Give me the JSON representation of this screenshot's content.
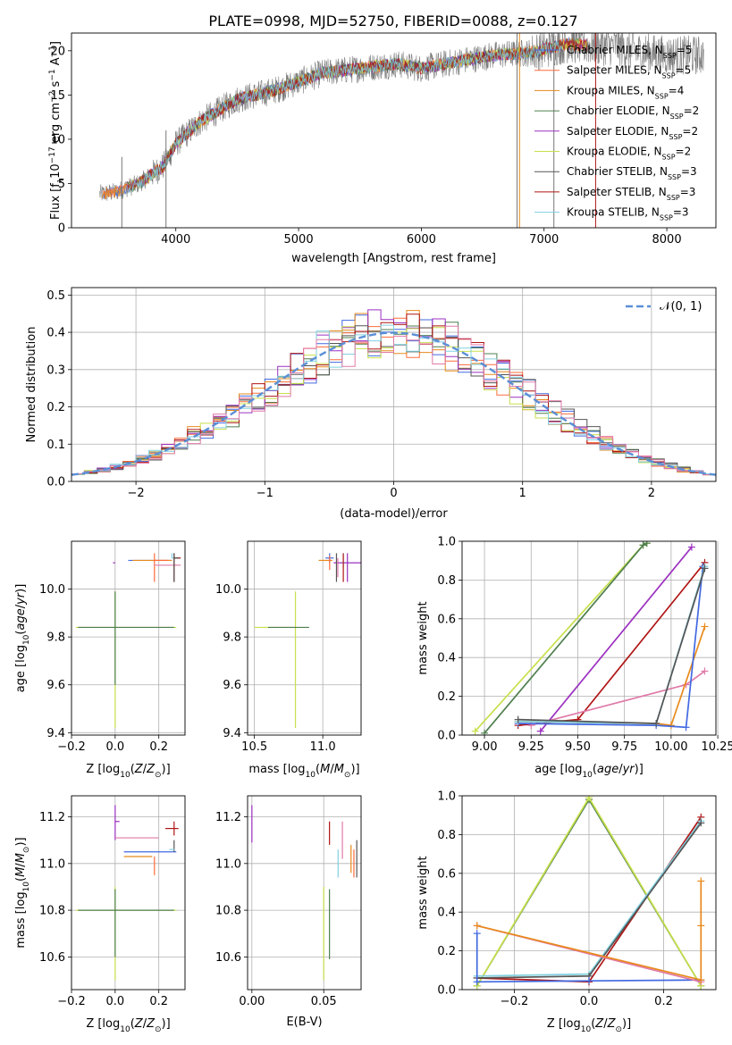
{
  "figure": {
    "title": "PLATE=0998, MJD=52750, FIBERID=0088, z=0.127"
  },
  "colors": {
    "chabrier_miles": "#4169e1",
    "salpeter_miles": "#ff6b3a",
    "kroupa_miles": "#e88a1c",
    "chabrier_elodie": "#4f7f4f",
    "salpeter_elodie": "#9b30c0",
    "kroupa_elodie": "#c8e04c",
    "chabrier_stelib": "#555555",
    "salpeter_stelib": "#b01515",
    "kroupa_stelib": "#80d0e0",
    "pink": "#e07aa8",
    "gauss": "#5b8fd6"
  },
  "chart_data": [
    {
      "id": "spectrum",
      "type": "line",
      "xlabel": "wavelength [Angstrom, rest frame]",
      "ylabel": "Flux [f",
      "xlim": [
        3150,
        8400
      ],
      "ylim": [
        0,
        22
      ],
      "xticks": [
        4000,
        5000,
        6000,
        7000,
        8000
      ],
      "yticks": [
        0,
        5,
        10,
        15,
        20
      ],
      "grid": false,
      "legend_position": "top-right",
      "legend": [
        "Chabrier MILES, N",
        "Salpeter MILES, N",
        "Kroupa MILES, N",
        "Chabrier ELODIE, N",
        "Salpeter ELODIE, N",
        "Kroupa ELODIE, N",
        "Chabrier STELIB, N",
        "Salpeter STELIB, N",
        "Kroupa STELIB, N"
      ],
      "legend_nssp": [
        "5",
        "5",
        "4",
        "2",
        "2",
        "2",
        "3",
        "3",
        "3"
      ],
      "continuum": {
        "x": [
          3380,
          3500,
          3700,
          3900,
          4000,
          4200,
          4500,
          4800,
          5000,
          5200,
          5500,
          5800,
          6000,
          6300,
          6600,
          6900,
          7100,
          7200,
          7400,
          7600,
          7700,
          8000,
          8300
        ],
        "y": [
          3.8,
          4.0,
          5.0,
          7.0,
          9.5,
          12.0,
          14.5,
          15.5,
          16.5,
          17.5,
          18.0,
          18.5,
          18.0,
          18.8,
          19.5,
          19.8,
          20.5,
          20.8,
          20.5,
          20.5,
          20.0,
          19.5,
          19.5
        ]
      },
      "models_extent": [
        3400,
        7350
      ],
      "spikes": [
        {
          "x": 3560,
          "ymin": 0,
          "ymax": 8
        },
        {
          "x": 3920,
          "ymin": 0,
          "ymax": 11
        },
        {
          "x": 6780,
          "ymin": 0,
          "ymax": 22
        },
        {
          "x": 6800,
          "ymin": 0,
          "ymax": 22
        },
        {
          "x": 7080,
          "ymin": 0,
          "ymax": 22
        },
        {
          "x": 7420,
          "ymin": 0,
          "ymax": 22
        }
      ]
    },
    {
      "id": "residuals",
      "type": "histogram",
      "xlabel": "(data-model)/error",
      "ylabel": "Normed distribution",
      "xlim": [
        -2.5,
        2.5
      ],
      "ylim": [
        0,
        0.52
      ],
      "xticks": [
        -2,
        -1,
        0,
        1,
        2
      ],
      "yticks": [
        0.0,
        0.1,
        0.2,
        0.3,
        0.4,
        0.5
      ],
      "grid": true,
      "legend_position": "top-right",
      "legend": [
        "𝒩(0, 1)"
      ],
      "bin_width": 0.1,
      "gaussian": {
        "mean": 0,
        "sigma": 1
      }
    },
    {
      "id": "age_vs_Z",
      "type": "scatter",
      "xlabel": "Z [log",
      "ylabel": "age  [log",
      "xlim": [
        -0.2,
        0.32
      ],
      "ylim": [
        9.39,
        10.2
      ],
      "xticks": [
        -0.2,
        0.0,
        0.2
      ],
      "yticks": [
        9.4,
        9.6,
        9.8,
        10.0
      ],
      "grid": true,
      "points": [
        {
          "series": "kroupa_elodie",
          "x": 0.0,
          "y": 9.84,
          "xerr": [
            0.18,
            0.28
          ],
          "yerr": [
            0.42,
            0.15
          ]
        },
        {
          "series": "chabrier_elodie",
          "x": 0.0,
          "y": 9.84,
          "xerr": [
            0.17,
            0.27
          ],
          "yerr": [
            0.24,
            0.15
          ]
        },
        {
          "series": "salpeter_elodie",
          "x": 0.0,
          "y": 10.11,
          "xerr": [
            0.01,
            0.0
          ],
          "yerr": [
            0.0,
            0.0
          ]
        },
        {
          "series": "chabrier_miles",
          "x": 0.08,
          "y": 10.12,
          "xerr": [
            0.02,
            0.18
          ],
          "yerr": [
            0.0,
            0.0
          ]
        },
        {
          "series": "kroupa_miles",
          "x": 0.08,
          "y": 10.12,
          "xerr": [
            0.0,
            0.18
          ],
          "yerr": [
            0.0,
            0.0
          ]
        },
        {
          "series": "salpeter_miles",
          "x": 0.18,
          "y": 10.12,
          "xerr": [
            0.0,
            0.06
          ],
          "yerr": [
            0.09,
            0.03
          ]
        },
        {
          "series": "pink",
          "x": 0.18,
          "y": 10.1,
          "xerr": [
            0.0,
            0.12
          ],
          "yerr": [
            0.0,
            0.0
          ]
        },
        {
          "series": "kroupa_stelib",
          "x": 0.26,
          "y": 10.13,
          "xerr": [
            0.0,
            0.04
          ],
          "yerr": [
            0.0,
            0.02
          ]
        },
        {
          "series": "salpeter_stelib",
          "x": 0.27,
          "y": 10.13,
          "xerr": [
            0.0,
            0.03
          ],
          "yerr": [
            0.1,
            0.02
          ]
        },
        {
          "series": "chabrier_stelib",
          "x": 0.27,
          "y": 10.13,
          "xerr": [
            0.0,
            0.02
          ],
          "yerr": [
            0.1,
            0.02
          ]
        }
      ]
    },
    {
      "id": "age_vs_mass",
      "type": "scatter",
      "xlabel": "mass [log",
      "ylabel": "",
      "xlim": [
        10.45,
        11.28
      ],
      "ylim": [
        9.39,
        10.2
      ],
      "xticks": [
        10.5,
        11.0
      ],
      "yticks": [
        9.4,
        9.6,
        9.8,
        10.0
      ],
      "grid": true,
      "points": [
        {
          "series": "kroupa_elodie",
          "x": 10.8,
          "y": 9.84,
          "xerr": [
            0.3,
            0.0
          ],
          "yerr": [
            0.42,
            0.15
          ]
        },
        {
          "series": "chabrier_elodie",
          "x": 10.8,
          "y": 9.84,
          "xerr": [
            0.2,
            0.1
          ],
          "yerr": [
            0.0,
            0.0
          ]
        },
        {
          "series": "salpeter_elodie",
          "x": 11.18,
          "y": 10.11,
          "xerr": [
            0.1,
            0.1
          ],
          "yerr": [
            0.08,
            0.04
          ]
        },
        {
          "series": "kroupa_miles",
          "x": 11.02,
          "y": 10.12,
          "xerr": [
            0.05,
            0.05
          ],
          "yerr": [
            0.0,
            0.0
          ]
        },
        {
          "series": "chabrier_miles",
          "x": 11.05,
          "y": 10.13,
          "xerr": [
            0.03,
            0.03
          ],
          "yerr": [
            0.02,
            0.02
          ]
        },
        {
          "series": "salpeter_miles",
          "x": 11.05,
          "y": 10.12,
          "xerr": [
            0.0,
            0.0
          ],
          "yerr": [
            0.04,
            0.02
          ]
        },
        {
          "series": "pink",
          "x": 11.11,
          "y": 10.1,
          "xerr": [
            0.0,
            0.0
          ],
          "yerr": [
            0.05,
            0.03
          ]
        },
        {
          "series": "kroupa_stelib",
          "x": 11.15,
          "y": 10.13,
          "xerr": [
            0.0,
            0.0
          ],
          "yerr": [
            0.04,
            0.02
          ]
        },
        {
          "series": "salpeter_stelib",
          "x": 11.15,
          "y": 10.13,
          "xerr": [
            0.0,
            0.0
          ],
          "yerr": [
            0.1,
            0.02
          ]
        },
        {
          "series": "chabrier_stelib",
          "x": 11.1,
          "y": 10.13,
          "xerr": [
            0.0,
            0.0
          ],
          "yerr": [
            0.1,
            0.02
          ]
        }
      ]
    },
    {
      "id": "weight_vs_age",
      "type": "line",
      "xlabel": "age  [log",
      "ylabel": "mass weight",
      "xlim": [
        8.88,
        10.24
      ],
      "ylim": [
        0,
        1.0
      ],
      "xticks": [
        9.0,
        9.25,
        9.5,
        9.75,
        10.0,
        10.25
      ],
      "yticks": [
        0.0,
        0.2,
        0.4,
        0.6,
        0.8,
        1.0
      ],
      "grid": true,
      "series": [
        {
          "series": "kroupa_elodie",
          "x": [
            8.95,
            9.85,
            9.87
          ],
          "y": [
            0.02,
            0.98,
            0.99
          ]
        },
        {
          "series": "chabrier_elodie",
          "x": [
            9.0,
            9.85,
            9.87
          ],
          "y": [
            0.01,
            0.98,
            0.99
          ]
        },
        {
          "series": "salpeter_elodie",
          "x": [
            9.3,
            10.11
          ],
          "y": [
            0.02,
            0.97
          ]
        },
        {
          "series": "salpeter_stelib",
          "x": [
            9.18,
            9.5,
            10.18
          ],
          "y": [
            0.05,
            0.08,
            0.89
          ]
        },
        {
          "series": "pink",
          "x": [
            9.25,
            10.08,
            10.18
          ],
          "y": [
            0.05,
            0.26,
            0.33
          ]
        },
        {
          "series": "kroupa_miles",
          "x": [
            9.18,
            9.92,
            10.0,
            10.18
          ],
          "y": [
            0.07,
            0.06,
            0.05,
            0.56
          ]
        },
        {
          "series": "chabrier_miles",
          "x": [
            9.18,
            9.92,
            10.08,
            10.17
          ],
          "y": [
            0.06,
            0.05,
            0.04,
            0.87
          ]
        },
        {
          "series": "kroupa_stelib",
          "x": [
            9.18,
            9.92,
            10.18
          ],
          "y": [
            0.07,
            0.06,
            0.87
          ]
        },
        {
          "series": "chabrier_stelib",
          "x": [
            9.18,
            9.92,
            10.18
          ],
          "y": [
            0.08,
            0.06,
            0.86
          ]
        }
      ]
    },
    {
      "id": "mass_vs_Z",
      "type": "scatter",
      "xlabel": "Z [log",
      "ylabel": "mass [log",
      "xlim": [
        -0.2,
        0.32
      ],
      "ylim": [
        10.46,
        11.29
      ],
      "xticks": [
        -0.2,
        0.0,
        0.2
      ],
      "yticks": [
        10.6,
        10.8,
        11.0,
        11.2
      ],
      "grid": true,
      "points": [
        {
          "series": "kroupa_elodie",
          "x": 0.0,
          "y": 10.8,
          "xerr": [
            0.18,
            0.28
          ],
          "yerr": [
            0.3,
            0.1
          ]
        },
        {
          "series": "chabrier_elodie",
          "x": 0.0,
          "y": 10.8,
          "xerr": [
            0.17,
            0.27
          ],
          "yerr": [
            0.2,
            0.09
          ]
        },
        {
          "series": "salpeter_elodie",
          "x": 0.0,
          "y": 11.18,
          "xerr": [
            0.0,
            0.02
          ],
          "yerr": [
            0.08,
            0.07
          ]
        },
        {
          "series": "pink",
          "x": 0.0,
          "y": 11.11,
          "xerr": [
            0.0,
            0.2
          ],
          "yerr": [
            0.0,
            0.0
          ]
        },
        {
          "series": "chabrier_miles",
          "x": 0.04,
          "y": 11.05,
          "xerr": [
            0.0,
            0.24
          ],
          "yerr": [
            0.0,
            0.0
          ]
        },
        {
          "series": "kroupa_miles",
          "x": 0.04,
          "y": 11.03,
          "xerr": [
            0.0,
            0.13
          ],
          "yerr": [
            0.0,
            0.0
          ]
        },
        {
          "series": "salpeter_miles",
          "x": 0.18,
          "y": 11.03,
          "xerr": [
            0.0,
            0.0
          ],
          "yerr": [
            0.08,
            0.0
          ]
        },
        {
          "series": "salpeter_stelib",
          "x": 0.27,
          "y": 11.15,
          "xerr": [
            0.04,
            0.02
          ],
          "yerr": [
            0.03,
            0.03
          ]
        },
        {
          "series": "chabrier_stelib",
          "x": 0.27,
          "y": 11.1,
          "xerr": [
            0.0,
            0.0
          ],
          "yerr": [
            0.05,
            0.0
          ]
        },
        {
          "series": "kroupa_stelib",
          "x": 0.26,
          "y": 11.06,
          "xerr": [
            0.0,
            0.0
          ],
          "yerr": [
            0.0,
            0.0
          ]
        }
      ]
    },
    {
      "id": "mass_vs_ebv",
      "type": "scatter",
      "xlabel": "E(B-V)",
      "ylabel": "",
      "xlim": [
        -0.003,
        0.076
      ],
      "ylim": [
        10.46,
        11.29
      ],
      "xticks": [
        0.0,
        0.05
      ],
      "yticks": [
        10.6,
        10.8,
        11.0,
        11.2
      ],
      "grid": true,
      "points": [
        {
          "series": "salpeter_elodie",
          "x": 0.0,
          "y": 11.17,
          "xerr": [
            0.0,
            0.0
          ],
          "yerr": [
            0.08,
            0.08
          ]
        },
        {
          "series": "kroupa_elodie",
          "x": 0.05,
          "y": 10.7,
          "xerr": [
            0.0,
            0.0
          ],
          "yerr": [
            0.2,
            0.2
          ]
        },
        {
          "series": "chabrier_elodie",
          "x": 0.054,
          "y": 10.74,
          "xerr": [
            0.0,
            0.0
          ],
          "yerr": [
            0.15,
            0.15
          ]
        },
        {
          "series": "salpeter_stelib",
          "x": 0.054,
          "y": 11.13,
          "xerr": [
            0.0,
            0.0
          ],
          "yerr": [
            0.05,
            0.05
          ]
        },
        {
          "series": "kroupa_stelib",
          "x": 0.06,
          "y": 11.0,
          "xerr": [
            0.0,
            0.0
          ],
          "yerr": [
            0.06,
            0.06
          ]
        },
        {
          "series": "pink",
          "x": 0.063,
          "y": 11.1,
          "xerr": [
            0.0,
            0.0
          ],
          "yerr": [
            0.08,
            0.08
          ]
        },
        {
          "series": "kroupa_miles",
          "x": 0.069,
          "y": 11.02,
          "xerr": [
            0.0,
            0.0
          ],
          "yerr": [
            0.06,
            0.06
          ]
        },
        {
          "series": "chabrier_stelib",
          "x": 0.073,
          "y": 11.02,
          "xerr": [
            0.0,
            0.0
          ],
          "yerr": [
            0.08,
            0.08
          ]
        },
        {
          "series": "salpeter_miles",
          "x": 0.071,
          "y": 11.0,
          "xerr": [
            0.0,
            0.0
          ],
          "yerr": [
            0.06,
            0.06
          ]
        }
      ]
    },
    {
      "id": "weight_vs_Z",
      "type": "line",
      "xlabel": "Z [log",
      "ylabel": "mass weight",
      "xlim": [
        -0.34,
        0.34
      ],
      "ylim": [
        0,
        1.0
      ],
      "xticks": [
        -0.2,
        0.0,
        0.2
      ],
      "yticks": [
        0.0,
        0.2,
        0.4,
        0.6,
        0.8,
        1.0
      ],
      "grid": true,
      "series": [
        {
          "series": "chabrier_elodie",
          "x": [
            -0.3,
            0.0,
            0.3
          ],
          "y": [
            0.02,
            0.98,
            0.02
          ]
        },
        {
          "series": "kroupa_elodie",
          "x": [
            -0.3,
            0.0,
            0.3
          ],
          "y": [
            0.02,
            0.99,
            0.02
          ]
        },
        {
          "series": "salpeter_stelib",
          "x": [
            -0.3,
            0.0,
            0.3
          ],
          "y": [
            0.06,
            0.04,
            0.89
          ]
        },
        {
          "series": "kroupa_stelib",
          "x": [
            -0.3,
            0.0,
            0.3
          ],
          "y": [
            0.07,
            0.08,
            0.87
          ]
        },
        {
          "series": "chabrier_stelib",
          "x": [
            -0.3,
            0.0,
            0.3
          ],
          "y": [
            0.06,
            0.07,
            0.86
          ]
        },
        {
          "series": "chabrier_miles",
          "x": [
            -0.3,
            -0.3,
            0.0,
            0.3
          ],
          "y": [
            0.29,
            0.04,
            0.045,
            0.05
          ]
        },
        {
          "series": "pink",
          "x": [
            -0.3,
            0.3
          ],
          "y": [
            0.33,
            0.04
          ]
        },
        {
          "series": "kroupa_miles",
          "x": [
            -0.3,
            0.3,
            0.3,
            0.3
          ],
          "y": [
            0.33,
            0.05,
            0.33,
            0.56
          ]
        }
      ]
    }
  ]
}
